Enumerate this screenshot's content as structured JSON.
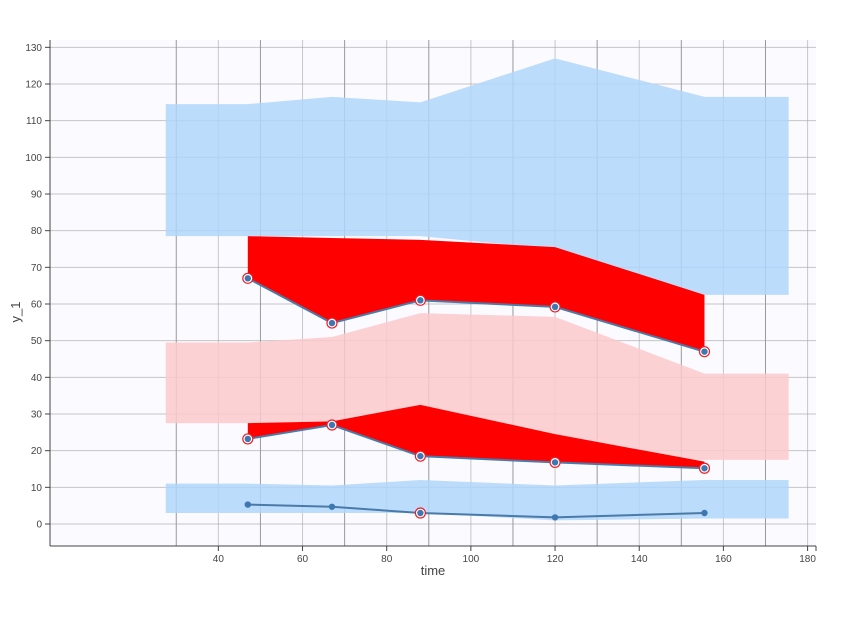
{
  "chart_data": {
    "type": "area",
    "xlabel": "time",
    "ylabel": "y_1",
    "xlim": [
      0,
      182
    ],
    "ylim": [
      -6,
      132
    ],
    "x_ticks": [
      40,
      60,
      80,
      100,
      120,
      140,
      160,
      180
    ],
    "y_ticks": [
      0,
      10,
      20,
      30,
      40,
      50,
      60,
      70,
      80,
      90,
      100,
      110,
      120,
      130
    ],
    "grid": true,
    "colors": {
      "plot_bg": "#fafaff",
      "grid": "#c8c8c8",
      "grid_major": "#9a9a9a",
      "light_blue_band": "#b0d6fb",
      "light_red_band": "#fcc9cc",
      "red_fill": "#ff0000",
      "line": "#4a7aa8",
      "marker": "#3e78b0",
      "outlier_ring": "#e8202a"
    },
    "bands": [
      {
        "color": "light_blue_band",
        "x": [
          27.5,
          47,
          67,
          88,
          120,
          155.5,
          175.5
        ],
        "upper": [
          114.5,
          114.5,
          116.5,
          115,
          127,
          116.5,
          116.5
        ],
        "lower": [
          78.5,
          78.5,
          78.5,
          78.5,
          75,
          62.5,
          62.5
        ]
      },
      {
        "color": "light_red_band",
        "x": [
          27.5,
          47,
          67,
          88,
          120,
          155.5,
          175.5
        ],
        "upper": [
          49.5,
          49.5,
          51,
          57.5,
          56.5,
          41,
          41
        ],
        "lower": [
          27.5,
          27.5,
          28,
          24,
          17.5,
          17.5,
          17.5
        ]
      },
      {
        "color": "light_blue_band",
        "x": [
          27.5,
          47,
          67,
          88,
          120,
          155.5,
          175.5
        ],
        "upper": [
          11,
          11,
          10.5,
          12,
          10.5,
          12,
          12
        ],
        "lower": [
          3,
          3,
          3,
          3,
          1,
          1.5,
          1.5
        ]
      }
    ],
    "red_areas": [
      {
        "x": [
          47,
          67,
          88,
          120,
          155.5
        ],
        "upper": [
          78.5,
          78,
          77.5,
          75.5,
          62.5
        ],
        "lower": [
          67,
          54.8,
          61,
          59.2,
          47
        ]
      },
      {
        "x": [
          47,
          67,
          88,
          120,
          155.5
        ],
        "upper": [
          27.5,
          28,
          32.5,
          24.5,
          17
        ],
        "lower": [
          23.2,
          27,
          18.5,
          16.8,
          15.2
        ]
      }
    ],
    "series": [
      {
        "x": [
          47,
          67,
          88,
          120,
          155.5
        ],
        "values": [
          67,
          54.8,
          61,
          59.2,
          47
        ],
        "outliers": [
          true,
          true,
          true,
          true,
          true
        ]
      },
      {
        "x": [
          47,
          67,
          88,
          120,
          155.5
        ],
        "values": [
          23.2,
          27,
          18.5,
          16.8,
          15.2
        ],
        "outliers": [
          true,
          true,
          true,
          true,
          true
        ]
      },
      {
        "x": [
          47,
          67,
          88,
          120,
          155.5
        ],
        "values": [
          5.3,
          4.7,
          3,
          1.8,
          3
        ],
        "outliers": [
          false,
          false,
          true,
          false,
          false
        ]
      }
    ]
  }
}
